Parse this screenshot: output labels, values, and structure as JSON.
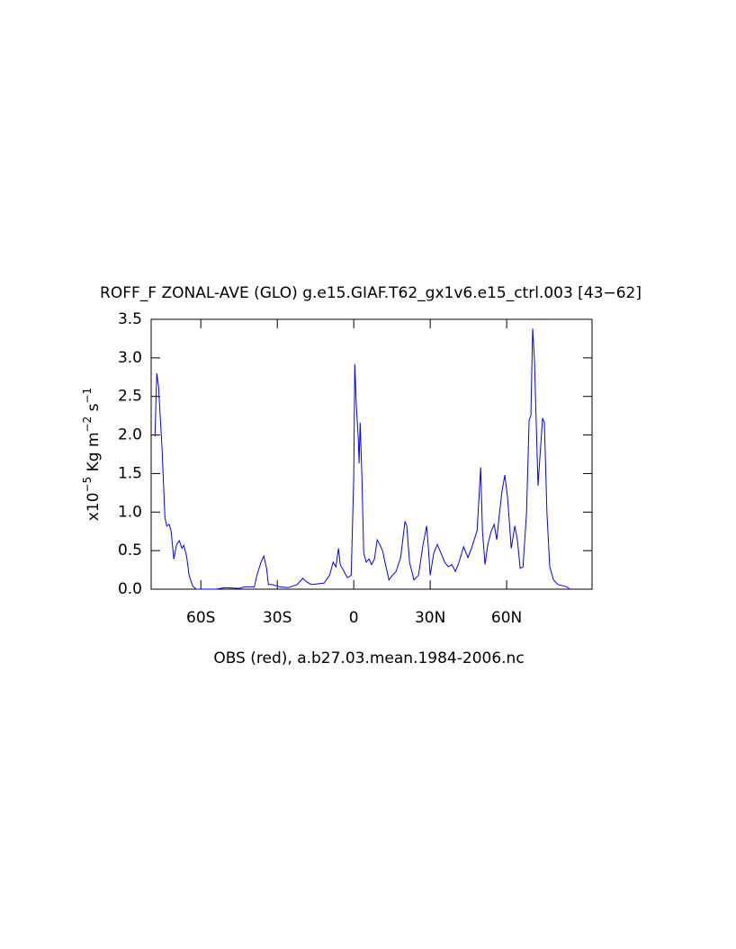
{
  "chart_data": {
    "type": "line",
    "title": "ROFF_F ZONAL-AVE (GLO) g.e15.GIAF.T62_gx1v6.e15_ctrl.003 [43−62]",
    "ylabel_parts": [
      "x10",
      "−5",
      " Kg m",
      "−2",
      " s",
      "−1"
    ],
    "footer": "OBS (red), a.b27.03.mean.1984-2006.nc",
    "xlim": [
      -79.5,
      93.5
    ],
    "ylim": [
      0,
      3.5
    ],
    "xticks": [
      {
        "value": -60,
        "label": "60S"
      },
      {
        "value": -30,
        "label": "30S"
      },
      0,
      {
        "value": 30,
        "label": "30N"
      },
      {
        "value": 60,
        "label": "60N"
      }
    ],
    "yticks": [
      {
        "value": 0,
        "label": "0.0"
      },
      {
        "value": 0.5,
        "label": "0.5"
      },
      {
        "value": 1,
        "label": "1.0"
      },
      {
        "value": 1.5,
        "label": "1.5"
      },
      {
        "value": 2,
        "label": "2.0"
      },
      {
        "value": 2.5,
        "label": "2.5"
      },
      {
        "value": 3,
        "label": "3.0"
      },
      {
        "value": 3.5,
        "label": "3.5"
      }
    ],
    "x": [
      -78.0,
      -77.3,
      -76.6,
      -75.2,
      -74.1,
      -73.4,
      -72.4,
      -71.7,
      -70.6,
      -69.5,
      -68.5,
      -67.4,
      -66.7,
      -65.6,
      -64.6,
      -63.2,
      -61.8,
      -54,
      -50.5,
      -45,
      -42.7,
      -39,
      -38,
      -36.4,
      -35.3,
      -34.2,
      -33.5,
      -32,
      -29,
      -25.8,
      -22.2,
      -20,
      -18.7,
      -16.6,
      -11.6,
      -9.5,
      -8.1,
      -7,
      -6,
      -5.3,
      -2.5,
      -1,
      0,
      0.4,
      1,
      1.8,
      2.1,
      2.5,
      3.2,
      3.9,
      4.9,
      6,
      7,
      8.1,
      9.2,
      10.2,
      11.3,
      12.4,
      13.8,
      15.2,
      16.6,
      18.4,
      20.1,
      20.8,
      21.9,
      23.6,
      25.4,
      27.2,
      28.6,
      29.3,
      30,
      31.4,
      32.8,
      34.2,
      35.7,
      37.1,
      38.5,
      39.9,
      41.3,
      43.1,
      44.8,
      46.2,
      48.4,
      49.8,
      50.5,
      51.5,
      52.6,
      54,
      55.1,
      56.1,
      57.2,
      58.2,
      59.3,
      60.4,
      61.8,
      63.2,
      64.2,
      65.3,
      66.4,
      67.8,
      68.8,
      69.5,
      70.2,
      70.9,
      71.6,
      72.3,
      73,
      74.1,
      74.8,
      75.8,
      76.9,
      78.4,
      80.1,
      83.7,
      84.7
    ],
    "series": [
      {
        "color": "#0000ff",
        "values": [
          1.98,
          2.8,
          2.63,
          1.81,
          0.93,
          0.82,
          0.84,
          0.76,
          0.39,
          0.58,
          0.63,
          0.53,
          0.57,
          0.43,
          0.18,
          0.04,
          0,
          0,
          0.02,
          0.01,
          0.03,
          0.03,
          0.18,
          0.35,
          0.43,
          0.27,
          0.06,
          0.06,
          0.03,
          0.02,
          0.06,
          0.14,
          0.1,
          0.06,
          0.08,
          0.18,
          0.35,
          0.29,
          0.53,
          0.32,
          0.15,
          0.18,
          1.46,
          2.92,
          2.39,
          1.93,
          1.63,
          2.16,
          1.46,
          0.47,
          0.35,
          0.39,
          0.32,
          0.39,
          0.64,
          0.58,
          0.5,
          0.33,
          0.12,
          0.18,
          0.23,
          0.41,
          0.88,
          0.82,
          0.35,
          0.12,
          0.18,
          0.58,
          0.82,
          0.53,
          0.18,
          0.47,
          0.58,
          0.47,
          0.35,
          0.29,
          0.32,
          0.23,
          0.35,
          0.55,
          0.41,
          0.53,
          0.76,
          1.58,
          0.76,
          0.32,
          0.58,
          0.76,
          0.84,
          0.64,
          0.99,
          1.28,
          1.48,
          1.17,
          0.53,
          0.82,
          0.64,
          0.27,
          0.29,
          0.99,
          2.19,
          2.25,
          3.38,
          2.98,
          2.16,
          1.34,
          1.69,
          2.22,
          2.16,
          0.99,
          0.29,
          0.12,
          0.06,
          0.03,
          0
        ]
      }
    ]
  }
}
